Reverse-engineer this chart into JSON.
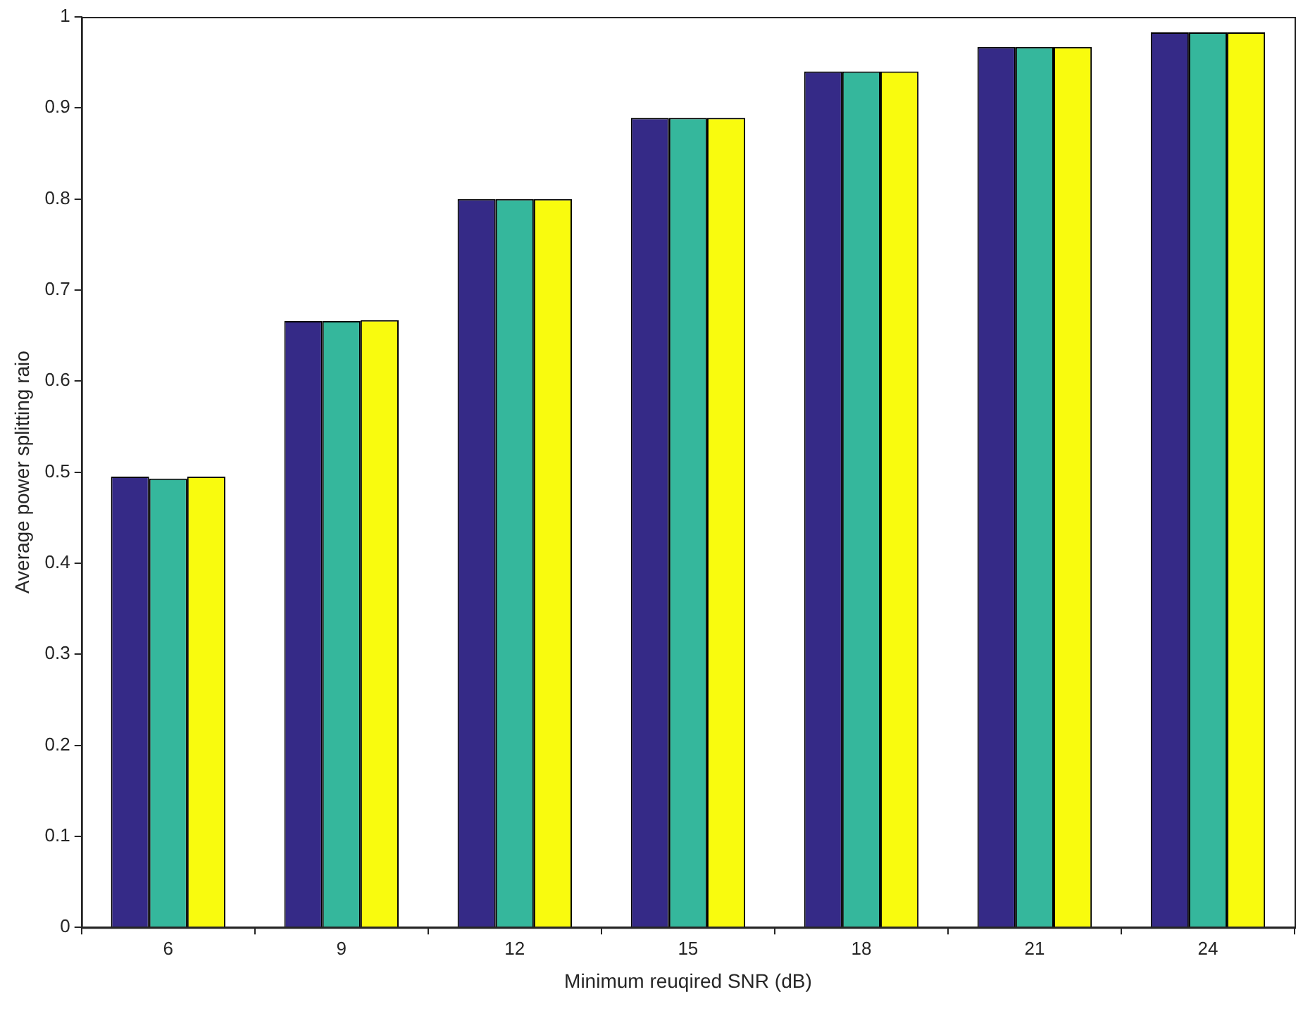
{
  "chart_data": {
    "type": "bar",
    "xlabel": "Minimum reuqired SNR (dB)",
    "ylabel": "Average power splitting raio",
    "categories": [
      "6",
      "9",
      "12",
      "15",
      "18",
      "21",
      "24"
    ],
    "series": [
      {
        "color": "#352a87",
        "values": [
          0.495,
          0.666,
          0.8,
          0.889,
          0.94,
          0.967,
          0.983
        ]
      },
      {
        "color": "#35b79c",
        "values": [
          0.493,
          0.666,
          0.8,
          0.889,
          0.94,
          0.967,
          0.983
        ]
      },
      {
        "color": "#f9fb0e",
        "values": [
          0.495,
          0.667,
          0.8,
          0.889,
          0.94,
          0.967,
          0.983
        ]
      }
    ],
    "ylim": [
      0,
      1
    ],
    "yticks": [
      0,
      0.1,
      0.2,
      0.3,
      0.4,
      0.5,
      0.6,
      0.7,
      0.8,
      0.9,
      1
    ],
    "grid": false,
    "legend": false
  }
}
